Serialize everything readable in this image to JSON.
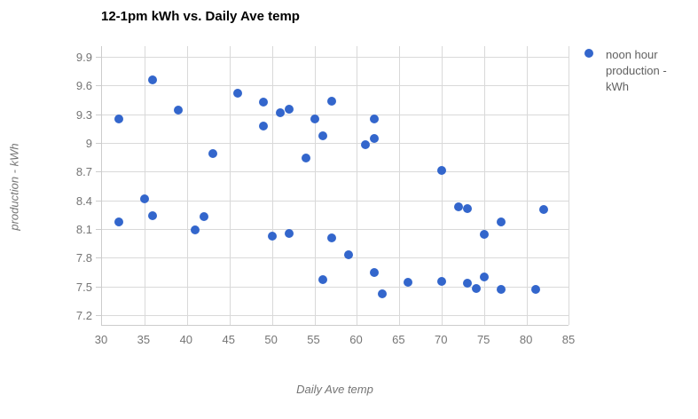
{
  "title": "12-1pm kWh vs. Daily Ave temp",
  "legend": {
    "label": "noon hour production - kWh",
    "marker_color": "#3366cc"
  },
  "colors": {
    "series_blue": "#3366cc",
    "gridline": "#d9d9d9",
    "axis_line": "#cccccc",
    "tick_text": "#757575",
    "title_text": "#000000",
    "legend_text": "#616161"
  },
  "chart_data": {
    "type": "scatter",
    "title": "12-1pm kWh vs. Daily Ave temp",
    "xlabel": "Daily Ave temp",
    "ylabel": "production - kWh",
    "xlim": [
      30,
      85
    ],
    "ylim": [
      7.09,
      10.01
    ],
    "x_ticks": [
      "30",
      "35",
      "40",
      "45",
      "50",
      "55",
      "60",
      "65",
      "70",
      "75",
      "80",
      "85"
    ],
    "y_ticks": [
      "9.9",
      "9.6",
      "9.3",
      "9",
      "8.7",
      "8.4",
      "8.1",
      "7.8",
      "7.5",
      "7.2"
    ],
    "grid": true,
    "legend_position": "right",
    "series": [
      {
        "name": "noon hour production - kWh",
        "color": "#3366cc",
        "points": [
          [
            32,
            9.25
          ],
          [
            32,
            8.17
          ],
          [
            35,
            8.42
          ],
          [
            36,
            9.66
          ],
          [
            36,
            8.24
          ],
          [
            39,
            9.34
          ],
          [
            41,
            8.09
          ],
          [
            42,
            8.23
          ],
          [
            43,
            8.89
          ],
          [
            46,
            9.52
          ],
          [
            49,
            9.43
          ],
          [
            49,
            9.18
          ],
          [
            50,
            8.03
          ],
          [
            51,
            9.32
          ],
          [
            52,
            9.35
          ],
          [
            52,
            8.05
          ],
          [
            54,
            8.84
          ],
          [
            55,
            9.25
          ],
          [
            56,
            9.07
          ],
          [
            56,
            7.57
          ],
          [
            57,
            9.44
          ],
          [
            57,
            8.01
          ],
          [
            59,
            7.83
          ],
          [
            61,
            8.98
          ],
          [
            62,
            9.25
          ],
          [
            62,
            9.05
          ],
          [
            62,
            7.65
          ],
          [
            63,
            7.42
          ],
          [
            66,
            7.54
          ],
          [
            70,
            8.71
          ],
          [
            70,
            7.55
          ],
          [
            72,
            8.33
          ],
          [
            73,
            8.31
          ],
          [
            73,
            7.53
          ],
          [
            74,
            7.48
          ],
          [
            75,
            8.04
          ],
          [
            75,
            7.6
          ],
          [
            77,
            8.17
          ],
          [
            77,
            7.47
          ],
          [
            81,
            7.47
          ],
          [
            82,
            8.3
          ]
        ]
      }
    ]
  }
}
